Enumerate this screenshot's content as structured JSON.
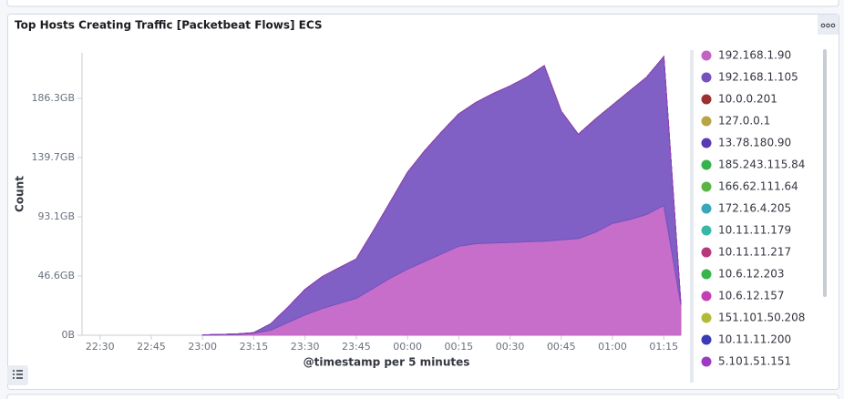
{
  "chart_data": {
    "type": "area",
    "title": "Top Hosts Creating Traffic [Packetbeat Flows] ECS",
    "y_label": "Count",
    "x_label": "@timestamp per 5 minutes",
    "stacked": true,
    "x": [
      "23:00",
      "23:05",
      "23:10",
      "23:15",
      "23:20",
      "23:25",
      "23:30",
      "23:35",
      "23:40",
      "23:45",
      "23:50",
      "23:55",
      "00:00",
      "00:05",
      "00:10",
      "00:15",
      "00:20",
      "00:25",
      "00:30",
      "00:35",
      "00:40",
      "00:45",
      "00:50",
      "00:55",
      "01:00",
      "01:05",
      "01:10",
      "01:15",
      "01:20"
    ],
    "xlim": [
      "22:25",
      "01:20"
    ],
    "xticks": [
      "22:30",
      "22:45",
      "23:00",
      "23:15",
      "23:30",
      "23:45",
      "00:00",
      "00:15",
      "00:30",
      "00:45",
      "01:00",
      "01:15"
    ],
    "ylim": [
      0,
      222.1
    ],
    "yticks": [
      {
        "value": 0,
        "label": "0B"
      },
      {
        "value": 46.6,
        "label": "46.6GB"
      },
      {
        "value": 93.1,
        "label": "93.1GB"
      },
      {
        "value": 139.7,
        "label": "139.7GB"
      },
      {
        "value": 186.3,
        "label": "186.3GB"
      }
    ],
    "series": [
      {
        "name": "192.168.1.90",
        "color": "#c162c4",
        "values": [
          0,
          0.2,
          0.5,
          1.4,
          4,
          10,
          16,
          21,
          25,
          29,
          37,
          45,
          52,
          58,
          64,
          70,
          72,
          72.5,
          73,
          73.5,
          74,
          75,
          76,
          81,
          88,
          91,
          95,
          102,
          24
        ]
      },
      {
        "name": "192.168.1.105",
        "color": "#7552c0",
        "values": [
          0.3,
          0.3,
          0.5,
          0.6,
          5,
          12,
          20,
          25,
          28,
          31,
          45,
          60,
          76,
          87,
          96,
          104,
          111,
          117.5,
          123,
          129.5,
          138,
          101,
          82,
          89,
          93,
          101,
          108,
          117,
          0
        ]
      },
      {
        "name": "10.0.0.201",
        "color": "#9b3131",
        "values": [
          0,
          0,
          0,
          0,
          0,
          0,
          0,
          0,
          0,
          0,
          0,
          0,
          0,
          0,
          0,
          0,
          0,
          0,
          0,
          0,
          0,
          0,
          0,
          0,
          0,
          0,
          0,
          0,
          0
        ]
      },
      {
        "name": "127.0.0.1",
        "color": "#b9a445",
        "values": [
          0,
          0,
          0,
          0,
          0,
          0,
          0,
          0,
          0,
          0,
          0,
          0,
          0,
          0,
          0,
          0,
          0,
          0,
          0,
          0,
          0,
          0,
          0,
          0,
          0,
          0,
          0,
          0,
          0
        ]
      },
      {
        "name": "13.78.180.90",
        "color": "#5a39b5",
        "values": [
          0,
          0,
          0,
          0,
          0,
          0,
          0,
          0,
          0,
          0,
          0,
          0,
          0,
          0,
          0,
          0,
          0,
          0,
          0,
          0,
          0,
          0,
          0,
          0,
          0,
          0,
          0,
          0,
          0
        ]
      },
      {
        "name": "185.243.115.84",
        "color": "#36b24a",
        "values": [
          0,
          0,
          0,
          0,
          0,
          0,
          0,
          0,
          0,
          0,
          0,
          0,
          0,
          0,
          0,
          0,
          0,
          0,
          0,
          0,
          0,
          0,
          0,
          0,
          0,
          0,
          0,
          0,
          0
        ]
      },
      {
        "name": "166.62.111.64",
        "color": "#5db446",
        "values": [
          0,
          0,
          0,
          0,
          0,
          0,
          0,
          0,
          0,
          0,
          0,
          0,
          0,
          0,
          0,
          0,
          0,
          0,
          0,
          0,
          0,
          0,
          0,
          0,
          0,
          0,
          0,
          0,
          0
        ]
      },
      {
        "name": "172.16.4.205",
        "color": "#3aa6bb",
        "values": [
          0,
          0,
          0,
          0,
          0,
          0,
          0,
          0,
          0,
          0,
          0,
          0,
          0,
          0,
          0,
          0,
          0,
          0,
          0,
          0,
          0,
          0,
          0,
          0,
          0,
          0,
          0,
          0,
          0
        ]
      },
      {
        "name": "10.11.11.179",
        "color": "#38b7a4",
        "values": [
          0,
          0,
          0,
          0,
          0,
          0,
          0,
          0,
          0,
          0,
          0,
          0,
          0,
          0,
          0,
          0,
          0,
          0,
          0,
          0,
          0,
          0,
          0,
          0,
          0,
          0,
          0,
          0,
          0
        ]
      },
      {
        "name": "10.11.11.217",
        "color": "#b63a7b",
        "values": [
          0,
          0,
          0,
          0,
          0,
          0,
          0,
          0,
          0,
          0,
          0,
          0,
          0,
          0,
          0,
          0,
          0,
          0,
          0,
          0,
          0,
          0,
          0,
          0,
          0,
          0,
          0,
          0,
          0
        ]
      },
      {
        "name": "10.6.12.203",
        "color": "#37b44c",
        "values": [
          0,
          0,
          0,
          0,
          0,
          0,
          0,
          0,
          0,
          0,
          0,
          0,
          0,
          0,
          0,
          0,
          0,
          0,
          0,
          0,
          0,
          0,
          0,
          0,
          0,
          0,
          0,
          0,
          0
        ]
      },
      {
        "name": "10.6.12.157",
        "color": "#c23fb4",
        "values": [
          0,
          0,
          0,
          0,
          0,
          0,
          0,
          0,
          0,
          0,
          0,
          0,
          0,
          0,
          0,
          0,
          0,
          0,
          0,
          0,
          0,
          0,
          0,
          0,
          0,
          0,
          0,
          0,
          0
        ]
      },
      {
        "name": "151.101.50.208",
        "color": "#b2ba36",
        "values": [
          0,
          0,
          0,
          0,
          0,
          0,
          0,
          0,
          0,
          0,
          0,
          0,
          0,
          0,
          0,
          0,
          0,
          0,
          0,
          0,
          0,
          0,
          0,
          0,
          0,
          0,
          0,
          0,
          0
        ]
      },
      {
        "name": "10.11.11.200",
        "color": "#3b3bb8",
        "values": [
          0,
          0,
          0,
          0,
          0,
          0,
          0,
          0,
          0,
          0,
          0,
          0,
          0,
          0,
          0,
          0,
          0,
          0,
          0,
          0,
          0,
          0,
          0,
          0,
          0,
          0,
          0,
          0,
          0
        ]
      },
      {
        "name": "5.101.51.151",
        "color": "#9b3cc2",
        "values": [
          0,
          0,
          0,
          0,
          0,
          0,
          0,
          0,
          0,
          0,
          0,
          0,
          0,
          0,
          0,
          0,
          0,
          0,
          0,
          0,
          0,
          0,
          0,
          0,
          0,
          0,
          0,
          0,
          0
        ]
      }
    ]
  }
}
